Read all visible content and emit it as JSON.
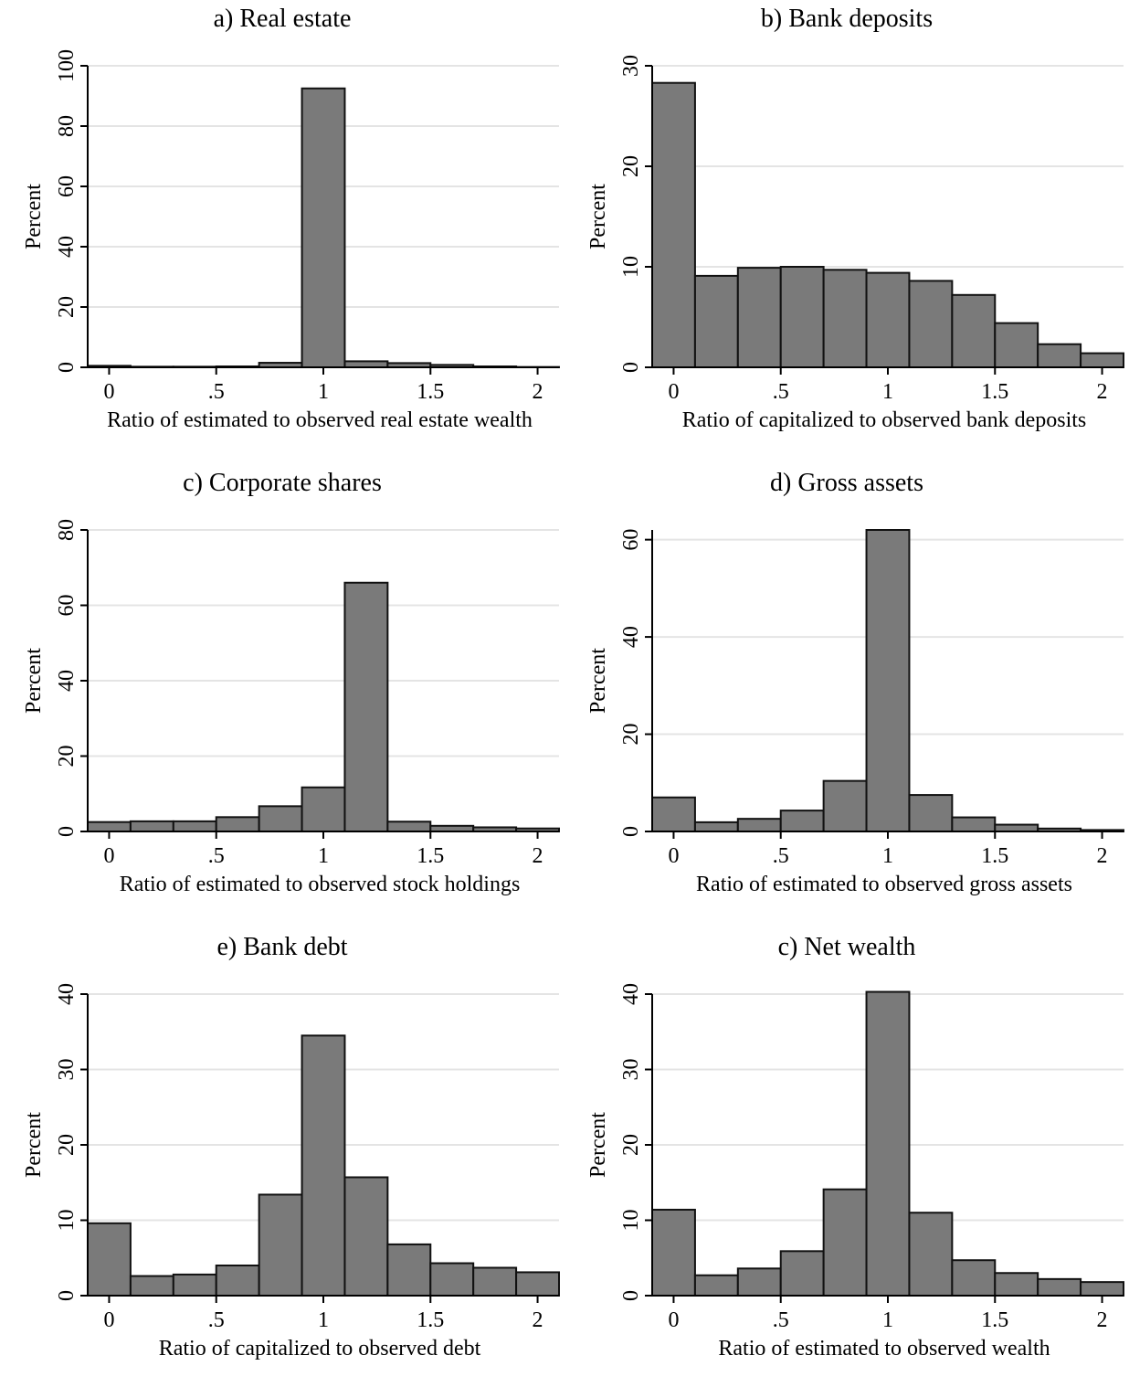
{
  "chart_data": [
    {
      "type": "bar",
      "title": "a) Real estate",
      "xlabel": "Ratio of estimated to observed real estate wealth",
      "ylabel": "Percent",
      "xlim": [
        -0.1,
        2.1
      ],
      "ylim": [
        0,
        100
      ],
      "xticks": [
        "0",
        ".5",
        "1",
        "1.5",
        "2"
      ],
      "yticks": [
        "0",
        "20",
        "40",
        "60",
        "80",
        "100"
      ],
      "grid": true,
      "bin_starts": [
        -0.1,
        0.1,
        0.3,
        0.5,
        0.7,
        0.9,
        1.1,
        1.3,
        1.5,
        1.7,
        1.9
      ],
      "bin_width": 0.2,
      "values": [
        0.5,
        0.2,
        0.2,
        0.3,
        1.5,
        92.5,
        2.0,
        1.4,
        0.8,
        0.3,
        0.1
      ]
    },
    {
      "type": "bar",
      "title": "b) Bank deposits",
      "xlabel": "Ratio of capitalized to observed bank deposits",
      "ylabel": "Percent",
      "xlim": [
        -0.1,
        2.1
      ],
      "ylim": [
        0,
        30
      ],
      "xticks": [
        "0",
        ".5",
        "1",
        "1.5",
        "2"
      ],
      "yticks": [
        "0",
        "10",
        "20",
        "30"
      ],
      "grid": true,
      "bin_starts": [
        -0.1,
        0.1,
        0.3,
        0.5,
        0.7,
        0.9,
        1.1,
        1.3,
        1.5,
        1.7,
        1.9
      ],
      "bin_width": 0.2,
      "values": [
        28.3,
        9.1,
        9.9,
        10.0,
        9.7,
        9.4,
        8.6,
        7.2,
        4.4,
        2.3,
        1.4
      ]
    },
    {
      "type": "bar",
      "title": "c) Corporate shares",
      "xlabel": "Ratio of estimated to observed stock holdings",
      "ylabel": "Percent",
      "xlim": [
        -0.1,
        2.1
      ],
      "ylim": [
        0,
        80
      ],
      "xticks": [
        "0",
        ".5",
        "1",
        "1.5",
        "2"
      ],
      "yticks": [
        "0",
        "20",
        "40",
        "60",
        "80"
      ],
      "grid": true,
      "bin_starts": [
        -0.1,
        0.1,
        0.3,
        0.5,
        0.7,
        0.9,
        1.1,
        1.3,
        1.5,
        1.7,
        1.9
      ],
      "bin_width": 0.2,
      "values": [
        2.5,
        2.7,
        2.7,
        3.8,
        6.7,
        11.7,
        66.0,
        2.6,
        1.5,
        1.1,
        0.8
      ]
    },
    {
      "type": "bar",
      "title": "d) Gross assets",
      "xlabel": "Ratio of estimated to observed gross assets",
      "ylabel": "Percent",
      "xlim": [
        -0.1,
        2.1
      ],
      "ylim": [
        0,
        62
      ],
      "xticks": [
        "0",
        ".5",
        "1",
        "1.5",
        "2"
      ],
      "yticks": [
        "0",
        "20",
        "40",
        "60"
      ],
      "grid": true,
      "bin_starts": [
        -0.1,
        0.1,
        0.3,
        0.5,
        0.7,
        0.9,
        1.1,
        1.3,
        1.5,
        1.7,
        1.9
      ],
      "bin_width": 0.2,
      "values": [
        7.0,
        1.9,
        2.6,
        4.3,
        10.4,
        62.0,
        7.5,
        2.9,
        1.4,
        0.6,
        0.3
      ]
    },
    {
      "type": "bar",
      "title": "e) Bank debt",
      "xlabel": "Ratio of capitalized to observed debt",
      "ylabel": "Percent",
      "xlim": [
        -0.1,
        2.1
      ],
      "ylim": [
        0,
        40
      ],
      "xticks": [
        "0",
        ".5",
        "1",
        "1.5",
        "2"
      ],
      "yticks": [
        "0",
        "10",
        "20",
        "30",
        "40"
      ],
      "grid": true,
      "bin_starts": [
        -0.1,
        0.1,
        0.3,
        0.5,
        0.7,
        0.9,
        1.1,
        1.3,
        1.5,
        1.7,
        1.9
      ],
      "bin_width": 0.2,
      "values": [
        9.6,
        2.6,
        2.8,
        4.0,
        13.4,
        34.5,
        15.7,
        6.8,
        4.3,
        3.7,
        3.1
      ]
    },
    {
      "type": "bar",
      "title": "c) Net wealth",
      "xlabel": "Ratio of estimated to observed wealth",
      "ylabel": "Percent",
      "xlim": [
        -0.1,
        2.1
      ],
      "ylim": [
        0,
        40
      ],
      "xticks": [
        "0",
        ".5",
        "1",
        "1.5",
        "2"
      ],
      "yticks": [
        "0",
        "10",
        "20",
        "30",
        "40"
      ],
      "grid": true,
      "bin_starts": [
        -0.1,
        0.1,
        0.3,
        0.5,
        0.7,
        0.9,
        1.1,
        1.3,
        1.5,
        1.7,
        1.9
      ],
      "bin_width": 0.2,
      "values": [
        11.4,
        2.7,
        3.6,
        5.9,
        14.1,
        40.3,
        11.0,
        4.7,
        3.0,
        2.2,
        1.8
      ]
    }
  ],
  "style": {
    "bar_fill": "#7a7a7a",
    "bar_stroke": "#111111",
    "grid_color": "#e4e4e4"
  }
}
